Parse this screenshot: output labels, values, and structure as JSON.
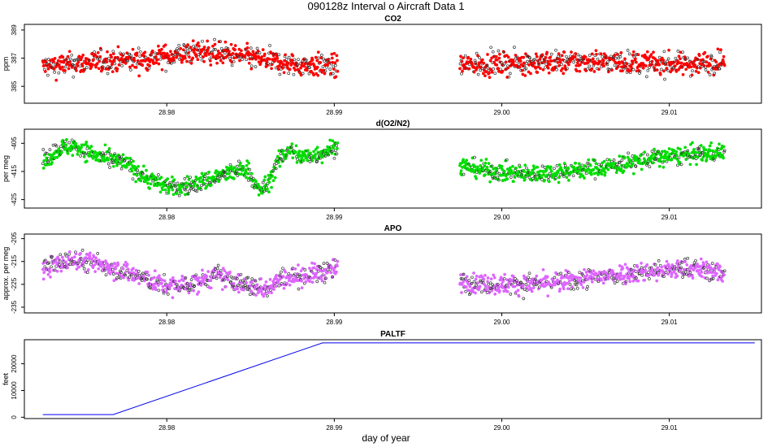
{
  "title": "090128z   Interval o Aircraft Data 1",
  "xlabel": "day of year",
  "chart_data": [
    {
      "type": "scatter",
      "title": "CO2",
      "ylabel": "ppm",
      "color": "#ff0000",
      "xlim": [
        28.9715,
        29.0155
      ],
      "ylim": [
        383.8,
        389.4
      ],
      "xticks": [
        "28.98",
        "28.99",
        "29.00",
        "29.01"
      ],
      "yticks": [
        "385",
        "387",
        "389"
      ],
      "segments": [
        {
          "x": [
            28.9726,
            28.9745,
            28.9765,
            28.9785,
            28.9805,
            28.9822,
            28.984,
            28.9858,
            28.9875,
            28.989,
            28.9902
          ],
          "y": [
            386.4,
            386.6,
            386.8,
            386.9,
            387.2,
            387.5,
            387.2,
            386.9,
            386.5,
            386.5,
            386.4
          ]
        },
        {
          "x": [
            28.9975,
            28.9995,
            29.0015,
            29.0035,
            29.0055,
            29.0075,
            29.0095,
            29.0115,
            29.0133
          ],
          "y": [
            386.5,
            386.6,
            386.7,
            386.7,
            386.8,
            386.7,
            386.6,
            386.6,
            386.8
          ]
        }
      ],
      "scatter_spread": 0.55
    },
    {
      "type": "scatter",
      "title": "d(O2/N2)",
      "ylabel": "per meg",
      "color": "#00dd00",
      "xlim": [
        28.9715,
        29.0155
      ],
      "ylim": [
        -428.0,
        -400.0
      ],
      "xticks": [
        "28.98",
        "28.99",
        "29.00",
        "29.01"
      ],
      "yticks": [
        "-425",
        "-415",
        "-405"
      ],
      "segments": [
        {
          "x": [
            28.9726,
            28.9735,
            28.9745,
            28.976,
            28.9775,
            28.979,
            28.9805,
            28.982,
            28.9835,
            28.9848,
            28.9855,
            28.986,
            28.9866,
            28.9873,
            28.988,
            28.989,
            28.9902
          ],
          "y": [
            -412,
            -407,
            -406,
            -410,
            -412,
            -418,
            -421,
            -419,
            -416,
            -414,
            -422,
            -420,
            -412,
            -407,
            -410,
            -409,
            -406
          ]
        },
        {
          "x": [
            28.9975,
            28.9995,
            29.0015,
            29.0035,
            29.0055,
            29.0075,
            29.0095,
            29.0115,
            29.0133
          ],
          "y": [
            -413,
            -415,
            -416,
            -415,
            -414,
            -412,
            -410,
            -409,
            -408
          ]
        }
      ],
      "scatter_spread": 2.2
    },
    {
      "type": "scatter",
      "title": "APO",
      "ylabel": "approx. per meg",
      "color": "#dd66ff",
      "xlim": [
        28.9715,
        29.0155
      ],
      "ylim": [
        -237.5,
        -203.0
      ],
      "xticks": [
        "28.98",
        "28.99",
        "29.00",
        "29.01"
      ],
      "yticks": [
        "-235",
        "-225",
        "-215",
        "-205"
      ],
      "segments": [
        {
          "x": [
            28.9726,
            28.9745,
            28.9765,
            28.9785,
            28.98,
            28.9815,
            28.983,
            28.9845,
            28.9858,
            28.987,
            28.9885,
            28.9902
          ],
          "y": [
            -218,
            -214,
            -217,
            -222,
            -226,
            -225,
            -221,
            -225,
            -227,
            -222,
            -221,
            -218
          ]
        },
        {
          "x": [
            28.9975,
            28.9995,
            29.0015,
            29.0035,
            29.0055,
            29.0075,
            29.0095,
            29.0115,
            29.0133
          ],
          "y": [
            -224,
            -225,
            -225,
            -224,
            -222,
            -220,
            -219,
            -218,
            -220
          ]
        }
      ],
      "scatter_spread": 3.0
    },
    {
      "type": "line",
      "title": "PALTF",
      "ylabel": "feet",
      "color": "#0000ee",
      "xlim": [
        28.9715,
        29.0155
      ],
      "ylim": [
        -500,
        29000
      ],
      "xticks": [
        "28.98",
        "28.99",
        "29.00",
        "29.01"
      ],
      "yticks": [
        "0",
        "10000",
        "20000"
      ],
      "x": [
        28.9726,
        28.9768,
        28.9893,
        29.0151
      ],
      "y": [
        1000,
        1000,
        27800,
        27800
      ]
    }
  ]
}
